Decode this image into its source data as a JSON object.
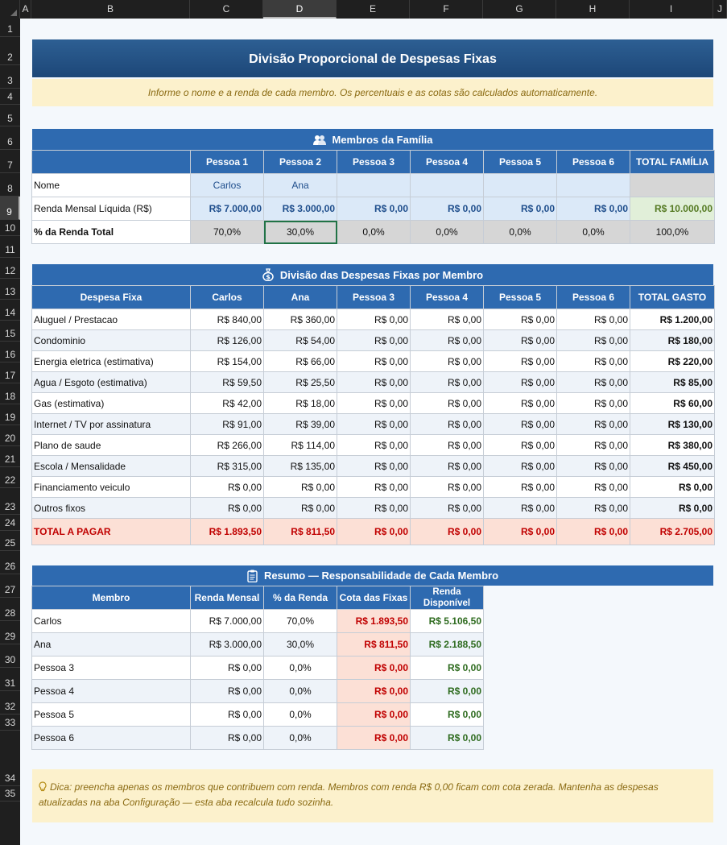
{
  "columns": [
    "A",
    "B",
    "C",
    "D",
    "E",
    "F",
    "G",
    "H",
    "I",
    "J"
  ],
  "selected_column": "D",
  "rows": [
    "1",
    "2",
    "3",
    "4",
    "5",
    "6",
    "7",
    "8",
    "9",
    "10",
    "11",
    "12",
    "13",
    "14",
    "15",
    "16",
    "17",
    "18",
    "19",
    "20",
    "21",
    "22",
    "23",
    "24",
    "25",
    "26",
    "27",
    "28",
    "29",
    "30",
    "31",
    "32",
    "33",
    "34",
    "35"
  ],
  "selected_row": "9",
  "title": "Divisão Proporcional de Despesas Fixas",
  "info": "Informe o nome e a renda de cada membro. Os percentuais e as cotas são calculados automaticamente.",
  "members_section": {
    "heading": "Membros da Família",
    "icon": "people-icon",
    "headers": [
      "",
      "Pessoa 1",
      "Pessoa 2",
      "Pessoa 3",
      "Pessoa 4",
      "Pessoa 5",
      "Pessoa 6",
      "TOTAL FAMÍLIA"
    ],
    "name_row": {
      "label": "Nome",
      "values": [
        "Carlos",
        "Ana",
        "",
        "",
        "",
        "",
        ""
      ]
    },
    "income_row": {
      "label": "Renda Mensal Líquida (R$)",
      "values": [
        "R$ 7.000,00",
        "R$ 3.000,00",
        "R$ 0,00",
        "R$ 0,00",
        "R$ 0,00",
        "R$ 0,00",
        "R$ 10.000,00"
      ]
    },
    "pct_row": {
      "label": "% da Renda Total",
      "values": [
        "70,0%",
        "30,0%",
        "0,0%",
        "0,0%",
        "0,0%",
        "0,0%",
        "100,0%"
      ]
    }
  },
  "expenses_section": {
    "heading": "Divisão das Despesas Fixas por Membro",
    "icon": "money-bag-icon",
    "headers": [
      "Despesa Fixa",
      "Carlos",
      "Ana",
      "Pessoa 3",
      "Pessoa 4",
      "Pessoa 5",
      "Pessoa 6",
      "TOTAL GASTO"
    ],
    "rows": [
      {
        "name": "Aluguel / Prestacao",
        "values": [
          "R$ 840,00",
          "R$ 360,00",
          "R$ 0,00",
          "R$ 0,00",
          "R$ 0,00",
          "R$ 0,00"
        ],
        "total": "R$ 1.200,00"
      },
      {
        "name": "Condominio",
        "values": [
          "R$ 126,00",
          "R$ 54,00",
          "R$ 0,00",
          "R$ 0,00",
          "R$ 0,00",
          "R$ 0,00"
        ],
        "total": "R$ 180,00"
      },
      {
        "name": "Energia eletrica (estimativa)",
        "values": [
          "R$ 154,00",
          "R$ 66,00",
          "R$ 0,00",
          "R$ 0,00",
          "R$ 0,00",
          "R$ 0,00"
        ],
        "total": "R$ 220,00"
      },
      {
        "name": "Agua / Esgoto (estimativa)",
        "values": [
          "R$ 59,50",
          "R$ 25,50",
          "R$ 0,00",
          "R$ 0,00",
          "R$ 0,00",
          "R$ 0,00"
        ],
        "total": "R$ 85,00"
      },
      {
        "name": "Gas (estimativa)",
        "values": [
          "R$ 42,00",
          "R$ 18,00",
          "R$ 0,00",
          "R$ 0,00",
          "R$ 0,00",
          "R$ 0,00"
        ],
        "total": "R$ 60,00"
      },
      {
        "name": "Internet / TV por assinatura",
        "values": [
          "R$ 91,00",
          "R$ 39,00",
          "R$ 0,00",
          "R$ 0,00",
          "R$ 0,00",
          "R$ 0,00"
        ],
        "total": "R$ 130,00"
      },
      {
        "name": "Plano de saude",
        "values": [
          "R$ 266,00",
          "R$ 114,00",
          "R$ 0,00",
          "R$ 0,00",
          "R$ 0,00",
          "R$ 0,00"
        ],
        "total": "R$ 380,00"
      },
      {
        "name": "Escola / Mensalidade",
        "values": [
          "R$ 315,00",
          "R$ 135,00",
          "R$ 0,00",
          "R$ 0,00",
          "R$ 0,00",
          "R$ 0,00"
        ],
        "total": "R$ 450,00"
      },
      {
        "name": "Financiamento veiculo",
        "values": [
          "R$ 0,00",
          "R$ 0,00",
          "R$ 0,00",
          "R$ 0,00",
          "R$ 0,00",
          "R$ 0,00"
        ],
        "total": "R$ 0,00"
      },
      {
        "name": "Outros fixos",
        "values": [
          "R$ 0,00",
          "R$ 0,00",
          "R$ 0,00",
          "R$ 0,00",
          "R$ 0,00",
          "R$ 0,00"
        ],
        "total": "R$ 0,00"
      }
    ],
    "total_row": {
      "label": "TOTAL A PAGAR",
      "values": [
        "R$ 1.893,50",
        "R$ 811,50",
        "R$ 0,00",
        "R$ 0,00",
        "R$ 0,00",
        "R$ 0,00"
      ],
      "total": "R$ 2.705,00"
    }
  },
  "summary_section": {
    "heading": "Resumo — Responsabilidade de Cada Membro",
    "icon": "clipboard-icon",
    "headers": [
      "Membro",
      "Renda Mensal",
      "% da Renda",
      "Cota das Fixas",
      "Renda Disponível"
    ],
    "rows": [
      {
        "member": "Carlos",
        "income": "R$ 7.000,00",
        "pct": "70,0%",
        "quota": "R$ 1.893,50",
        "available": "R$ 5.106,50"
      },
      {
        "member": "Ana",
        "income": "R$ 3.000,00",
        "pct": "30,0%",
        "quota": "R$ 811,50",
        "available": "R$ 2.188,50"
      },
      {
        "member": "Pessoa 3",
        "income": "R$ 0,00",
        "pct": "0,0%",
        "quota": "R$ 0,00",
        "available": "R$ 0,00"
      },
      {
        "member": "Pessoa 4",
        "income": "R$ 0,00",
        "pct": "0,0%",
        "quota": "R$ 0,00",
        "available": "R$ 0,00"
      },
      {
        "member": "Pessoa 5",
        "income": "R$ 0,00",
        "pct": "0,0%",
        "quota": "R$ 0,00",
        "available": "R$ 0,00"
      },
      {
        "member": "Pessoa 6",
        "income": "R$ 0,00",
        "pct": "0,0%",
        "quota": "R$ 0,00",
        "available": "R$ 0,00"
      }
    ]
  },
  "tip": {
    "icon": "lightbulb-icon",
    "text": "Dica: preencha apenas os membros que contribuem com renda. Membros com renda R$ 0,00 ficam com cota zerada. Mantenha as despesas atualizadas na aba Configuração — esta aba recalcula tudo sozinha."
  },
  "colors": {
    "header_blue": "#2e6ab0",
    "title_navy": "#1d4778",
    "info_yellow": "#fcf1cc",
    "total_red": "#c00000",
    "available_green": "#2e6b1f"
  }
}
